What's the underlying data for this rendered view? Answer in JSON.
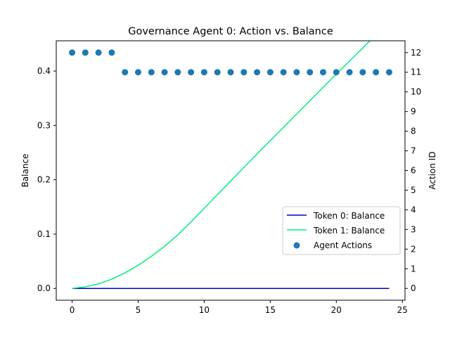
{
  "chart_data": {
    "type": "line",
    "title": "Governance Agent 0: Action vs. Balance",
    "xlabel": "",
    "ylabel": "Balance",
    "y2label": "Action ID",
    "xlim": [
      -1.2,
      25.2
    ],
    "ylim": [
      -0.0217,
      0.4557
    ],
    "y2lim": [
      -0.6,
      12.6
    ],
    "x_ticks": [
      0,
      5,
      10,
      15,
      20,
      25
    ],
    "x_tick_labels": [
      "0",
      "5",
      "10",
      "15",
      "20",
      "25"
    ],
    "y_ticks": [
      0.0,
      0.1,
      0.2,
      0.3,
      0.4
    ],
    "y_tick_labels": [
      "0.0",
      "0.1",
      "0.2",
      "0.3",
      "0.4"
    ],
    "y2_ticks": [
      0,
      1,
      2,
      3,
      4,
      5,
      6,
      7,
      8,
      9,
      10,
      11,
      12
    ],
    "y2_tick_labels": [
      "0",
      "1",
      "2",
      "3",
      "4",
      "5",
      "6",
      "7",
      "8",
      "9",
      "10",
      "11",
      "12"
    ],
    "grid": false,
    "legend_position": "center-right",
    "x": [
      0,
      1,
      2,
      3,
      4,
      5,
      6,
      7,
      8,
      9,
      10,
      11,
      12,
      13,
      14,
      15,
      16,
      17,
      18,
      19,
      20,
      21,
      22,
      23,
      24
    ],
    "series": [
      {
        "name": "Token 0: Balance",
        "kind": "line",
        "axis": "left",
        "color": "#0000cc",
        "values": [
          0,
          0,
          0,
          0,
          0,
          0,
          0,
          0,
          0,
          0,
          0,
          0,
          0,
          0,
          0,
          0,
          0,
          0,
          0,
          0,
          0,
          0,
          0,
          0,
          0
        ]
      },
      {
        "name": "Token 1: Balance",
        "kind": "line",
        "axis": "left",
        "color": "#00f07a",
        "values": [
          0.0,
          0.003,
          0.0085,
          0.017,
          0.0285,
          0.0425,
          0.059,
          0.0775,
          0.0985,
          0.1225,
          0.1475,
          0.1725,
          0.1975,
          0.2225,
          0.2475,
          0.272,
          0.2965,
          0.321,
          0.3455,
          0.37,
          0.3945,
          0.4185,
          0.4425,
          0.4665,
          0.4905
        ]
      },
      {
        "name": "Agent Actions",
        "kind": "scatter",
        "axis": "right",
        "color": "#1f77b4",
        "values": [
          12,
          12,
          12,
          12,
          11,
          11,
          11,
          11,
          11,
          11,
          11,
          11,
          11,
          11,
          11,
          11,
          11,
          11,
          11,
          11,
          11,
          11,
          11,
          11,
          11
        ]
      }
    ]
  }
}
